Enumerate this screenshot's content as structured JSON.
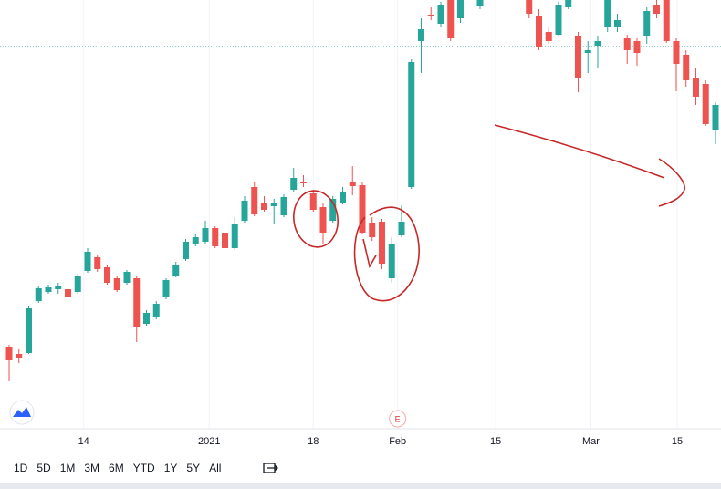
{
  "chart_data": {
    "type": "candlestick",
    "up_color": "#26a69a",
    "down_color": "#ef5350",
    "open": [
      120,
      112,
      113,
      170,
      180,
      183,
      183,
      180,
      203,
      218,
      207,
      195,
      190,
      195,
      145,
      153,
      174,
      198,
      216,
      233,
      235,
      250,
      245,
      228,
      258,
      295,
      278,
      274,
      264,
      292,
      301,
      288,
      273,
      258,
      278,
      301,
      297,
      256,
      257,
      195,
      242,
      295,
      455,
      484,
      474,
      500,
      480,
      510,
      493,
      505,
      515,
      510,
      518,
      500,
      482,
      465,
      462,
      492,
      460,
      442,
      450,
      470,
      470,
      458,
      455,
      460,
      495,
      500,
      455,
      440,
      415,
      408,
      358
    ],
    "high": [
      122,
      117,
      165,
      186,
      188,
      190,
      195,
      200,
      228,
      220,
      210,
      198,
      204,
      197,
      160,
      170,
      195,
      213,
      238,
      243,
      258,
      252,
      250,
      262,
      285,
      300,
      285,
      282,
      287,
      316,
      308,
      292,
      278,
      285,
      295,
      318,
      300,
      262,
      260,
      240,
      275,
      435,
      480,
      492,
      498,
      505,
      505,
      530,
      508,
      525,
      525,
      528,
      525,
      510,
      490,
      470,
      498,
      505,
      465,
      455,
      460,
      505,
      485,
      462,
      458,
      492,
      500,
      505,
      458,
      445,
      425,
      412,
      388
    ],
    "low": [
      82,
      102,
      112,
      168,
      178,
      178,
      153,
      178,
      201,
      202,
      188,
      180,
      188,
      125,
      143,
      150,
      172,
      196,
      214,
      230,
      232,
      228,
      218,
      226,
      256,
      263,
      268,
      254,
      262,
      290,
      295,
      268,
      232,
      256,
      276,
      286,
      243,
      236,
      205,
      190,
      240,
      293,
      420,
      478,
      470,
      455,
      475,
      505,
      490,
      500,
      505,
      505,
      505,
      480,
      445,
      452,
      460,
      490,
      399,
      420,
      425,
      465,
      465,
      430,
      428,
      452,
      480,
      453,
      400,
      405,
      385,
      362,
      342
    ],
    "close": [
      105,
      108,
      162,
      184,
      185,
      186,
      175,
      198,
      224,
      205,
      190,
      182,
      202,
      142,
      157,
      167,
      193,
      210,
      235,
      240,
      250,
      230,
      228,
      255,
      280,
      265,
      270,
      278,
      284,
      305,
      299,
      270,
      245,
      282,
      290,
      296,
      245,
      240,
      211,
      232,
      257,
      432,
      468,
      482,
      495,
      458,
      500,
      520,
      500,
      515,
      510,
      520,
      512,
      485,
      448,
      455,
      495,
      500,
      415,
      445,
      455,
      500,
      478,
      445,
      442,
      488,
      485,
      455,
      430,
      412,
      394,
      364,
      385
    ],
    "xlim": [
      -0.93,
      72.56
    ],
    "ylim": [
      30,
      500
    ],
    "xticks": [
      {
        "value": 7.6,
        "label": "14"
      },
      {
        "value": 20.4,
        "label": "2021"
      },
      {
        "value": 31,
        "label": "18"
      },
      {
        "value": 39.6,
        "label": "Feb"
      },
      {
        "value": 49.6,
        "label": "15"
      },
      {
        "value": 59.3,
        "label": "Mar"
      },
      {
        "value": 68.1,
        "label": "15"
      }
    ],
    "grid": true,
    "price_line": 449,
    "price_line_color": "#26a69a",
    "event_marker": {
      "label": "E",
      "x": 39.6
    }
  },
  "toolbar": {
    "ranges": [
      "1D",
      "5D",
      "1M",
      "3M",
      "6M",
      "YTD",
      "1Y",
      "5Y",
      "All"
    ]
  }
}
